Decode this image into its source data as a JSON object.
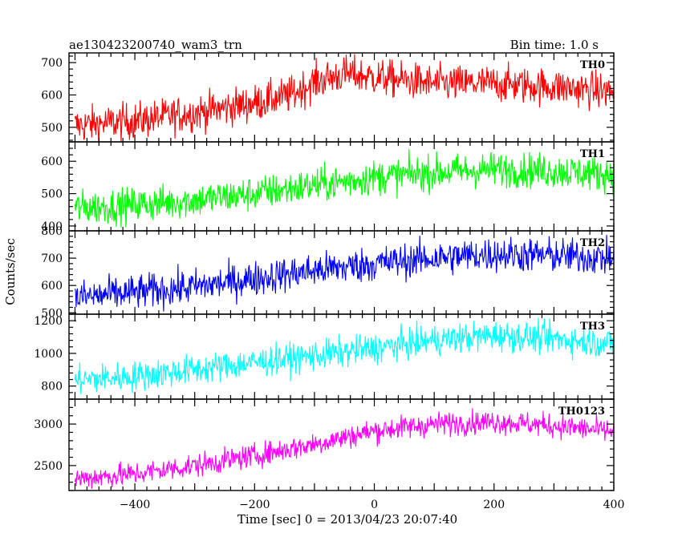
{
  "chart_data": {
    "type": "line",
    "title": "ae130423200740_wam3_trn",
    "subtitle": "Bin time: 1.0 s",
    "xlabel": "Time [sec] 0 = 2013/04/23 20:07:40",
    "ylabel": "Counts/sec",
    "xlim": [
      -510,
      400
    ],
    "x_ticks": [
      -400,
      -200,
      0,
      200,
      400
    ],
    "x_tick_labels": [
      "−400",
      "−200",
      "0",
      "200",
      "400"
    ],
    "grid": false,
    "panels": [
      {
        "name": "TH0",
        "color": "#ff0000",
        "ylim": [
          455,
          730
        ],
        "y_ticks": [
          500,
          600,
          700
        ],
        "y_tick_labels": [
          "500",
          "600",
          "700"
        ],
        "noise": 40,
        "trend": [
          [
            -500,
            505
          ],
          [
            -400,
            520
          ],
          [
            -300,
            545
          ],
          [
            -200,
            575
          ],
          [
            -140,
            600
          ],
          [
            -100,
            640
          ],
          [
            -50,
            665
          ],
          [
            0,
            655
          ],
          [
            100,
            635
          ],
          [
            200,
            635
          ],
          [
            300,
            625
          ],
          [
            400,
            610
          ]
        ]
      },
      {
        "name": "TH1",
        "color": "#00ff00",
        "ylim": [
          385,
          660
        ],
        "y_ticks": [
          400,
          500,
          600
        ],
        "y_tick_labels": [
          "400",
          "500",
          "600"
        ],
        "noise": 38,
        "trend": [
          [
            -500,
            455
          ],
          [
            -400,
            465
          ],
          [
            -300,
            480
          ],
          [
            -200,
            500
          ],
          [
            -100,
            525
          ],
          [
            0,
            550
          ],
          [
            100,
            565
          ],
          [
            200,
            575
          ],
          [
            300,
            570
          ],
          [
            400,
            560
          ]
        ]
      },
      {
        "name": "TH2",
        "color": "#0000ff",
        "ylim": [
          495,
          800
        ],
        "y_ticks": [
          500,
          600,
          700,
          800
        ],
        "y_tick_labels": [
          "500",
          "600",
          "700",
          "800"
        ],
        "noise": 45,
        "trend": [
          [
            -500,
            555
          ],
          [
            -400,
            575
          ],
          [
            -300,
            595
          ],
          [
            -200,
            625
          ],
          [
            -100,
            655
          ],
          [
            0,
            680
          ],
          [
            100,
            700
          ],
          [
            200,
            715
          ],
          [
            300,
            710
          ],
          [
            400,
            700
          ]
        ]
      },
      {
        "name": "TH3",
        "color": "#00ffff",
        "ylim": [
          720,
          1240
        ],
        "y_ticks": [
          800,
          1000,
          1200
        ],
        "y_tick_labels": [
          "800",
          "1000",
          "1200"
        ],
        "noise": 65,
        "trend": [
          [
            -500,
            835
          ],
          [
            -400,
            860
          ],
          [
            -300,
            900
          ],
          [
            -200,
            945
          ],
          [
            -100,
            985
          ],
          [
            0,
            1030
          ],
          [
            100,
            1080
          ],
          [
            200,
            1110
          ],
          [
            300,
            1090
          ],
          [
            400,
            1060
          ]
        ]
      },
      {
        "name": "TH0123",
        "color": "#ff00ff",
        "ylim": [
          2200,
          3300
        ],
        "y_ticks": [
          2500,
          3000
        ],
        "y_tick_labels": [
          "2500",
          "3000"
        ],
        "noise": 100,
        "trend": [
          [
            -500,
            2340
          ],
          [
            -400,
            2400
          ],
          [
            -300,
            2500
          ],
          [
            -200,
            2620
          ],
          [
            -100,
            2760
          ],
          [
            0,
            2920
          ],
          [
            100,
            3000
          ],
          [
            200,
            3030
          ],
          [
            300,
            2980
          ],
          [
            400,
            2910
          ]
        ]
      }
    ]
  }
}
